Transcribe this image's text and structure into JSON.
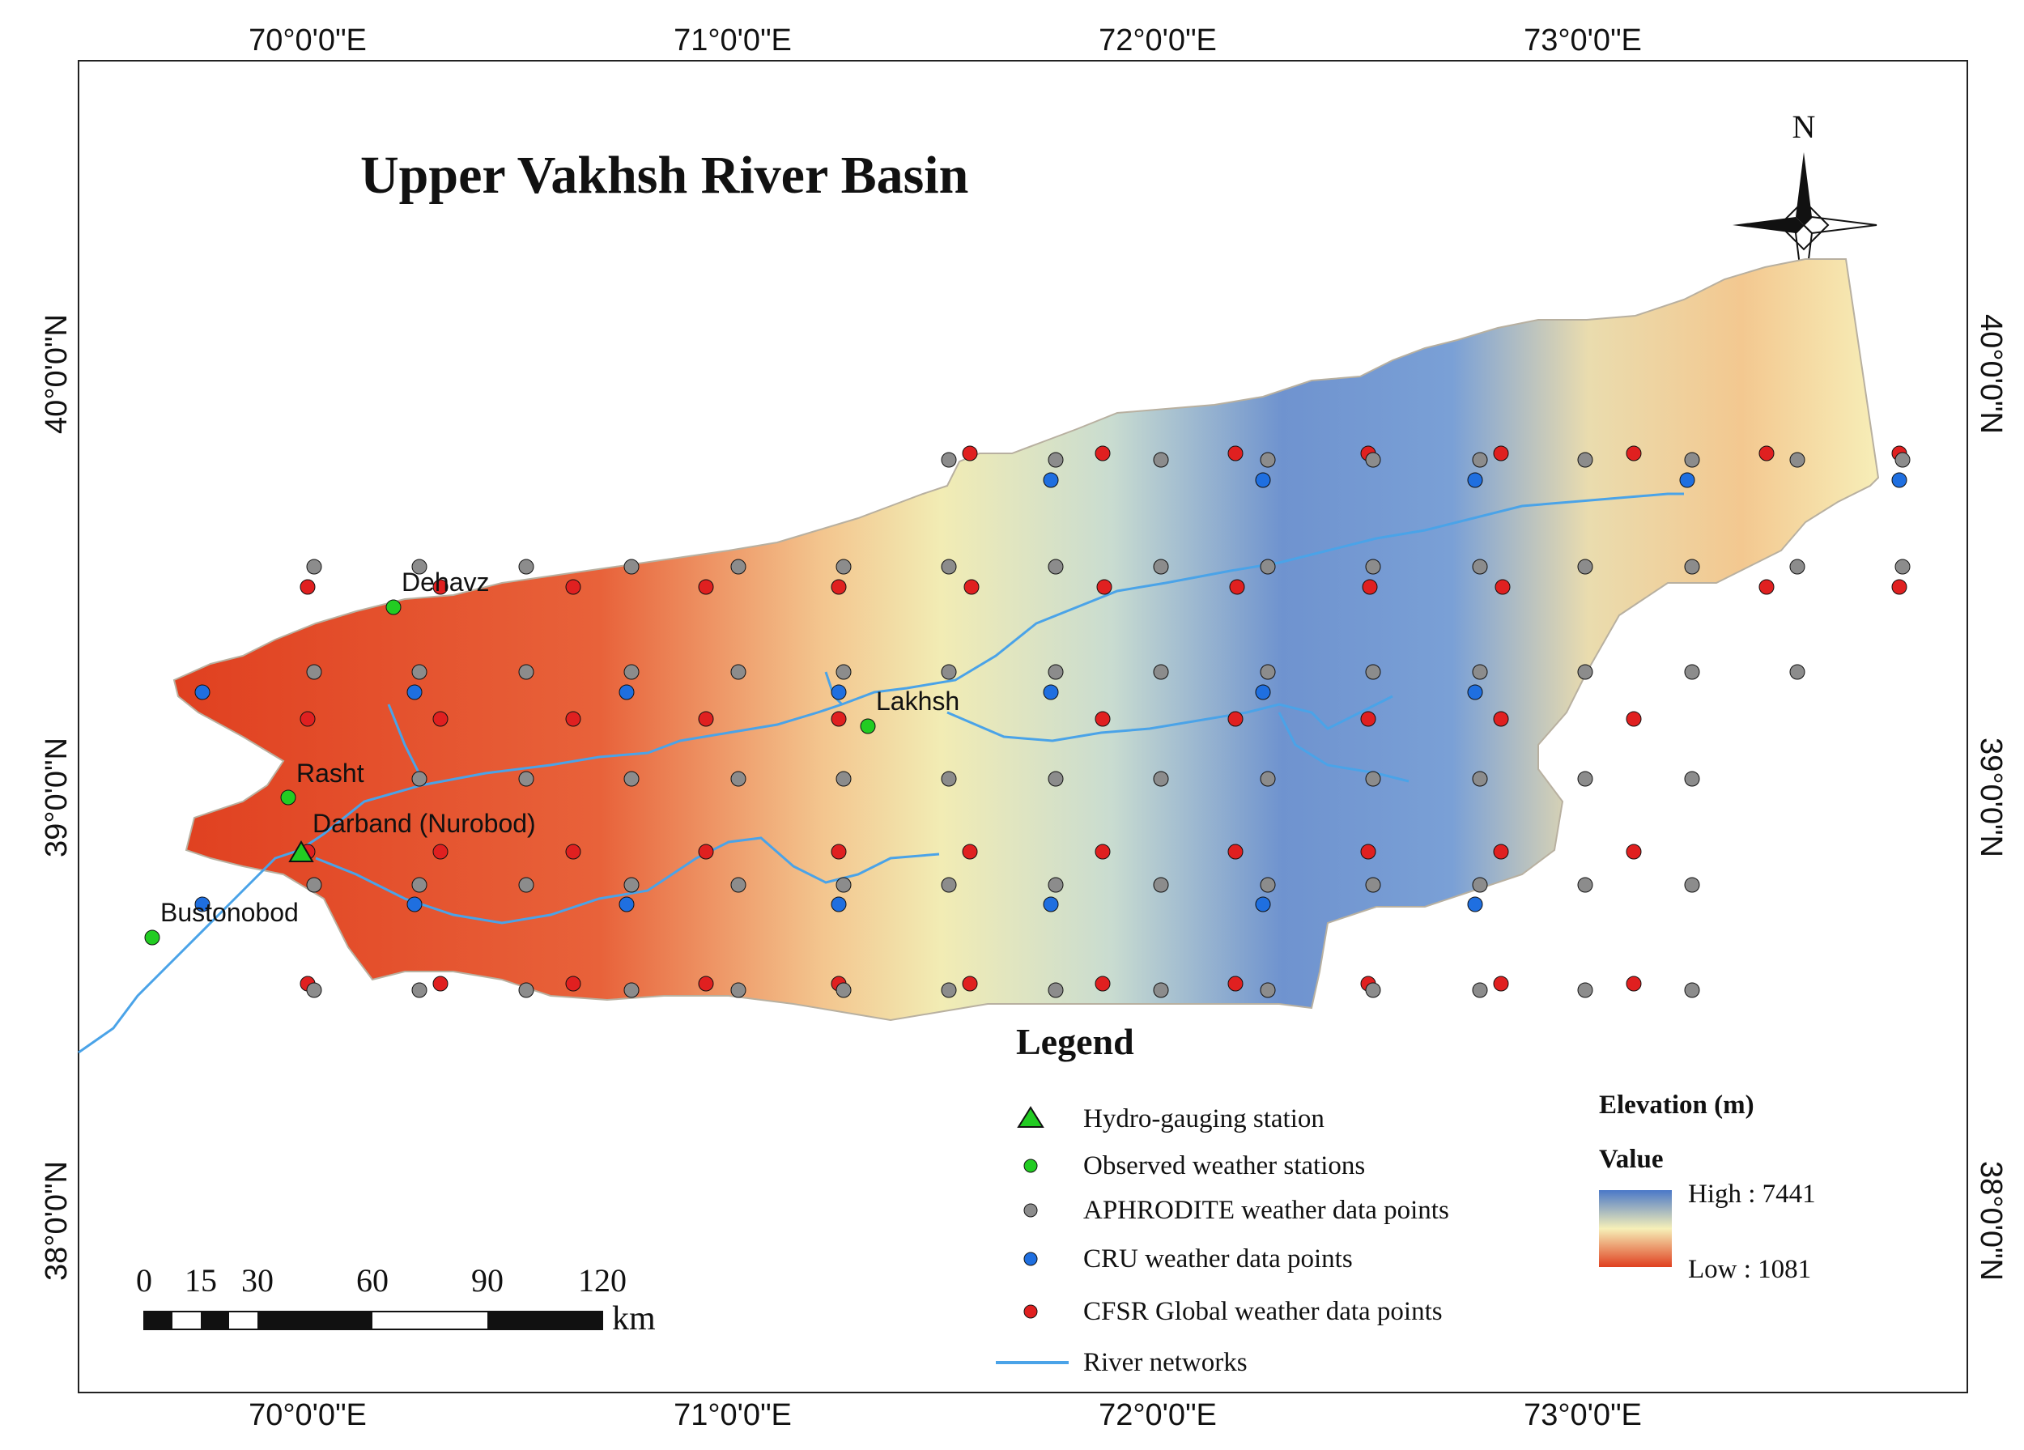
{
  "title": "Upper Vakhsh River Basin",
  "north_label": "N",
  "longitude_ticks": [
    "70°0'0\"E",
    "71°0'0\"E",
    "72°0'0\"E",
    "73°0'0\"E"
  ],
  "latitude_ticks": [
    "40°0'0\"N",
    "39°0'0\"N",
    "38°0'0\"N"
  ],
  "places": {
    "dehavz": "Dehavz",
    "lakhsh": "Lakhsh",
    "rasht": "Rasht",
    "darband": "Darband (Nurobod)",
    "bustonobod": "Bustonobod"
  },
  "legend": {
    "title": "Legend",
    "items": [
      {
        "label": "Hydro-gauging station",
        "symbol": "triangle",
        "color": "#22cc22"
      },
      {
        "label": "Observed weather stations",
        "symbol": "dot",
        "color": "#22cc22"
      },
      {
        "label": "APHRODITE weather data points",
        "symbol": "dot",
        "color": "#8c8c8c"
      },
      {
        "label": "CRU weather data points",
        "symbol": "dot",
        "color": "#1f6fe0"
      },
      {
        "label": "CFSR Global weather data points",
        "symbol": "dot",
        "color": "#e02020"
      },
      {
        "label": "River networks",
        "symbol": "line",
        "color": "#4aa3e8"
      }
    ]
  },
  "elevation": {
    "title": "Elevation (m)",
    "value_label": "Value",
    "high": "High : 7441",
    "low": "Low : 1081",
    "colors": [
      "#4a78c8",
      "#f6f0b8",
      "#e04020"
    ]
  },
  "scale_bar": {
    "ticks": [
      "0",
      "15",
      "30",
      "60",
      "90",
      "120"
    ],
    "unit": "km"
  }
}
